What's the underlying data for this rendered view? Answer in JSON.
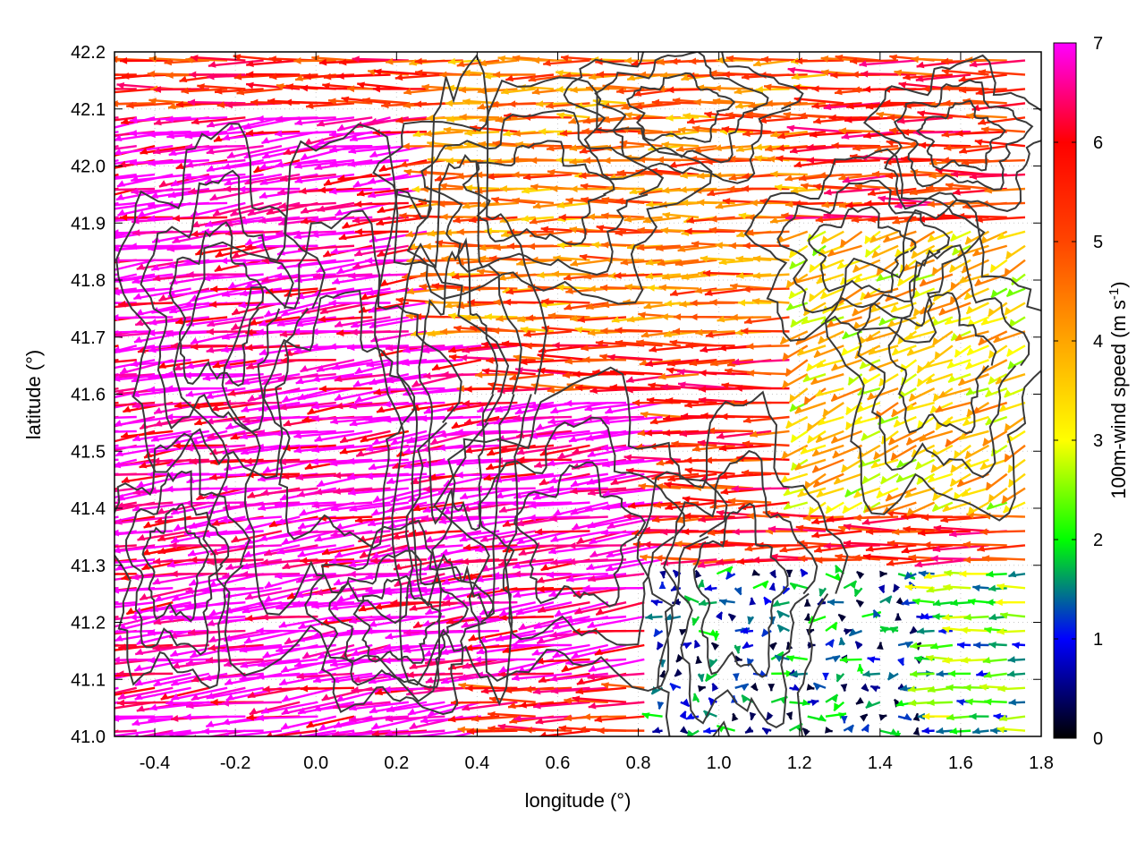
{
  "chart_data": {
    "type": "vector-field",
    "xlabel": "longitude (°)",
    "ylabel": "latitude (°)",
    "xlim": [
      -0.5,
      1.8
    ],
    "ylim": [
      41.0,
      42.2
    ],
    "x_ticks": [
      "-0.4",
      "-0.2",
      "0.0",
      "0.2",
      "0.4",
      "0.6",
      "0.8",
      "1.0",
      "1.2",
      "1.4",
      "1.6",
      "1.8"
    ],
    "y_ticks": [
      "41.0",
      "41.1",
      "41.2",
      "41.3",
      "41.4",
      "41.5",
      "41.6",
      "41.7",
      "41.8",
      "41.9",
      "42.0",
      "42.1",
      "42.2"
    ],
    "grid": true,
    "colorbar": {
      "label_main": "100m-wind speed (m s",
      "label_sup": "-1",
      "label_end": ")",
      "range": [
        0,
        7
      ],
      "ticks": [
        "0",
        "1",
        "2",
        "3",
        "4",
        "5",
        "6",
        "7"
      ],
      "stops": [
        {
          "value": 0,
          "color": "#000000"
        },
        {
          "value": 1,
          "color": "#0000ff"
        },
        {
          "value": 2,
          "color": "#00ff00"
        },
        {
          "value": 3,
          "color": "#ffff00"
        },
        {
          "value": 4,
          "color": "#ffa500"
        },
        {
          "value": 5,
          "color": "#ff4500"
        },
        {
          "value": 6,
          "color": "#ff0000"
        },
        {
          "value": 7,
          "color": "#ff00ff"
        }
      ]
    },
    "wind_field_regions": [
      {
        "lon": [
          -0.5,
          0.45
        ],
        "lat": [
          41.0,
          42.1
        ],
        "speed_ms": 7,
        "direction": "toward WNW"
      },
      {
        "lon": [
          0.45,
          0.9
        ],
        "lat": [
          41.1,
          41.6
        ],
        "speed_ms": 7,
        "direction": "toward WNW"
      },
      {
        "lon": [
          0.3,
          1.3
        ],
        "lat": [
          41.7,
          42.2
        ],
        "speed_ms": 4.5,
        "direction": "toward W"
      },
      {
        "lon": [
          1.2,
          1.8
        ],
        "lat": [
          41.4,
          41.9
        ],
        "speed_ms": 3.5,
        "direction": "toward NW"
      },
      {
        "lon": [
          0.85,
          1.5
        ],
        "lat": [
          41.0,
          41.3
        ],
        "speed_ms": 1,
        "direction": "variable"
      },
      {
        "lon": [
          1.5,
          1.8
        ],
        "lat": [
          41.0,
          41.3
        ],
        "speed_ms": 2,
        "direction": "toward W"
      }
    ],
    "contour_color": "#3a3a3a"
  }
}
